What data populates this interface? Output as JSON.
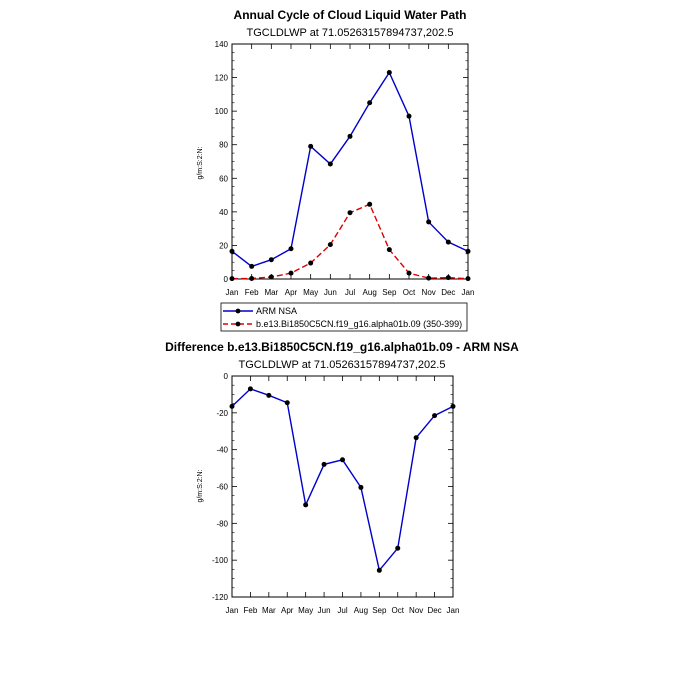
{
  "chart_data": [
    {
      "type": "line",
      "title": "Annual Cycle of Cloud Liquid Water Path",
      "subtitle": "TGCLDLWP at 71.05263157894737,202.5",
      "ylabel": "g/m:S:2:N:",
      "xlabel": "",
      "ylim": [
        0,
        140
      ],
      "yticks": [
        "0",
        "20",
        "40",
        "60",
        "80",
        "100",
        "120",
        "140"
      ],
      "yticks_values": [
        0,
        20,
        40,
        60,
        80,
        100,
        120,
        140
      ],
      "categories": [
        "Jan",
        "Feb",
        "Mar",
        "Apr",
        "May",
        "Jun",
        "Jul",
        "Aug",
        "Sep",
        "Oct",
        "Nov",
        "Dec",
        "Jan"
      ],
      "series": [
        {
          "name": "ARM NSA",
          "color": "#0000cc",
          "style": "solid",
          "values": [
            16.5,
            7.5,
            11.5,
            18,
            79,
            68.5,
            85,
            105,
            123,
            97,
            34,
            22,
            16.5
          ]
        },
        {
          "name": "b.e13.Bi1850C5CN.f19_g16.alpha01b.09 (350-399)",
          "color": "#dd0000",
          "style": "dashed",
          "values": [
            0.2,
            0.3,
            1.2,
            3.5,
            9.5,
            20.5,
            39.5,
            44.5,
            17.5,
            3.5,
            0.5,
            0.8,
            0.2
          ]
        }
      ]
    },
    {
      "type": "line",
      "title": "Difference b.e13.Bi1850C5CN.f19_g16.alpha01b.09 - ARM NSA",
      "subtitle": "TGCLDLWP at 71.05263157894737,202.5",
      "ylabel": "g/m:S:2:N:",
      "xlabel": "",
      "ylim": [
        -120,
        0
      ],
      "yticks": [
        "0",
        "-20",
        "-40",
        "-60",
        "-80",
        "-100",
        "-120"
      ],
      "yticks_values": [
        0,
        -20,
        -40,
        -60,
        -80,
        -100,
        -120
      ],
      "categories": [
        "Jan",
        "Feb",
        "Mar",
        "Apr",
        "May",
        "Jun",
        "Jul",
        "Aug",
        "Sep",
        "Oct",
        "Nov",
        "Dec",
        "Jan"
      ],
      "series": [
        {
          "name": "Difference",
          "color": "#0000cc",
          "style": "solid",
          "values": [
            -16.5,
            -7,
            -10.5,
            -14.5,
            -70,
            -48,
            -45.5,
            -60.5,
            -105.5,
            -93.5,
            -33.5,
            -21.5,
            -16.5
          ]
        }
      ]
    }
  ]
}
